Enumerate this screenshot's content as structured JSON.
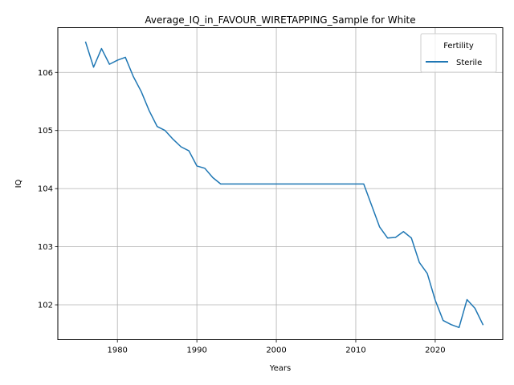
{
  "chart_data": {
    "type": "line",
    "title": "Average_IQ_in_FAVOUR_WIRETAPPING_Sample for White",
    "xlabel": "Years",
    "ylabel": "IQ",
    "xlim": [
      1972.5,
      2028.5
    ],
    "ylim": [
      101.4,
      106.77
    ],
    "xticks": [
      1980,
      1990,
      2000,
      2010,
      2020
    ],
    "yticks": [
      102,
      103,
      104,
      105,
      106
    ],
    "grid": true,
    "legend": {
      "title": "Fertility",
      "placement": "top-right"
    },
    "series": [
      {
        "name": "Sterile",
        "color": "#1f77b4",
        "x": [
          1976,
          1977,
          1978,
          1979,
          1980,
          1981,
          1982,
          1983,
          1984,
          1985,
          1986,
          1987,
          1988,
          1989,
          1990,
          1991,
          1992,
          1993,
          1994,
          1995,
          1996,
          1997,
          1998,
          1999,
          2000,
          2001,
          2002,
          2003,
          2004,
          2005,
          2006,
          2007,
          2008,
          2009,
          2010,
          2011,
          2012,
          2013,
          2014,
          2015,
          2016,
          2017,
          2018,
          2019,
          2020,
          2021,
          2022,
          2023,
          2024,
          2025,
          2026
        ],
        "y": [
          106.52,
          106.09,
          106.41,
          106.14,
          106.21,
          106.26,
          105.93,
          105.67,
          105.34,
          105.07,
          105.0,
          104.85,
          104.72,
          104.65,
          104.39,
          104.35,
          104.19,
          104.08,
          104.08,
          104.08,
          104.08,
          104.08,
          104.08,
          104.08,
          104.08,
          104.08,
          104.08,
          104.08,
          104.08,
          104.08,
          104.08,
          104.08,
          104.08,
          104.08,
          104.08,
          104.08,
          103.71,
          103.34,
          103.15,
          103.16,
          103.26,
          103.15,
          102.73,
          102.54,
          102.08,
          101.73,
          101.66,
          101.61,
          102.09,
          101.94,
          101.66
        ]
      }
    ]
  }
}
